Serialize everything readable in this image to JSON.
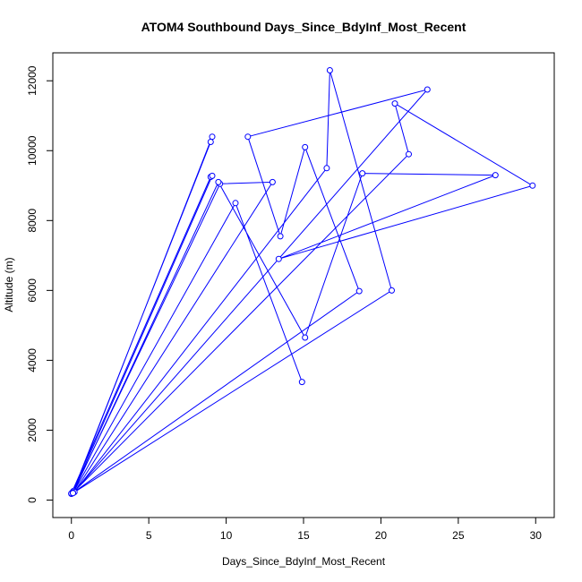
{
  "chart_data": {
    "type": "line",
    "title": "ATOM4 Southbound Days_Since_BdyInf_Most_Recent",
    "xlabel": "Days_Since_BdyInf_Most_Recent",
    "ylabel": "Altitude (m)",
    "xlim": [
      -1.2,
      31.2
    ],
    "ylim": [
      -500,
      12800
    ],
    "xticks": [
      0,
      5,
      10,
      15,
      20,
      25,
      30
    ],
    "yticks": [
      0,
      2000,
      4000,
      6000,
      8000,
      10000,
      12000
    ],
    "grid": false,
    "legend": "none",
    "series": [
      {
        "color": "#0000ff",
        "marker": "open-circle",
        "points": [
          [
            0.0,
            180
          ],
          [
            0.1,
            240
          ],
          [
            9.0,
            10250
          ],
          [
            9.1,
            10400
          ],
          [
            0.15,
            260
          ],
          [
            0.0,
            190
          ],
          [
            9.0,
            9250
          ],
          [
            9.1,
            9280
          ],
          [
            0.1,
            220
          ],
          [
            9.6,
            9050
          ],
          [
            13.0,
            9100
          ],
          [
            0.2,
            230
          ],
          [
            16.5,
            9500
          ],
          [
            16.7,
            12300
          ],
          [
            20.7,
            6000
          ],
          [
            0.1,
            200
          ],
          [
            23.0,
            11750
          ],
          [
            11.4,
            10400
          ],
          [
            13.5,
            7550
          ],
          [
            15.1,
            10100
          ],
          [
            18.6,
            5980
          ],
          [
            0.1,
            210
          ],
          [
            21.8,
            9900
          ],
          [
            20.9,
            11350
          ],
          [
            29.8,
            9000
          ],
          [
            13.4,
            6900
          ],
          [
            27.4,
            9300
          ],
          [
            18.8,
            9350
          ],
          [
            15.1,
            4650
          ],
          [
            9.5,
            9100
          ],
          [
            0.1,
            200
          ],
          [
            10.6,
            8500
          ],
          [
            14.9,
            3380
          ]
        ]
      }
    ]
  }
}
